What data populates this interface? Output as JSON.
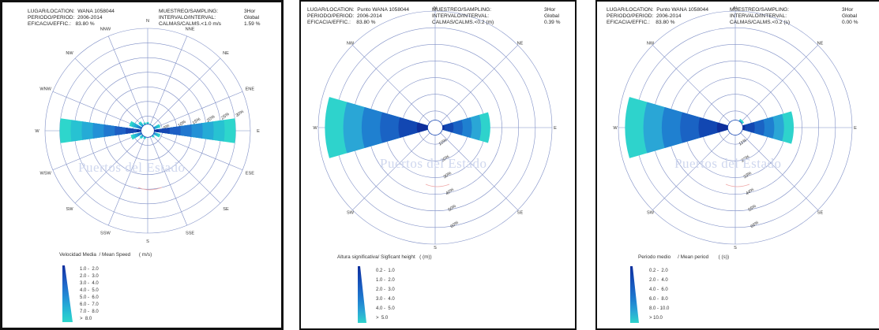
{
  "panels": [
    {
      "header": {
        "l1": "LUGAR/LOCATION:  WANA 1058044",
        "l2": "PERIODO/PERIOD:  2006-2014",
        "l3": "EFICACIA/EFFIC.:   83.80 %",
        "r1": "MUESTREO/SAMPLING:",
        "r2": "INTERVALO/INTERVAL:",
        "r3": "CALMAS/CALMS.<1.0 m/s",
        "v1": "3Hor",
        "v2": "Global",
        "v3": "1.59 %"
      },
      "watermark": "Puertos del Estado",
      "legend_title": "Velocidad Media  / Mean Speed      ( m/s)",
      "legend_items": [
        "1.0 -  2.0",
        "2.0 -  3.0",
        "3.0 -  4.0",
        "4.0 -  5.0",
        "5.0 -  6.0",
        "6.0 -  7.0",
        "7.0 -  8.0",
        ">  8.0"
      ]
    },
    {
      "header": {
        "l1": "LUGAR/LOCATION:  Punto WANA 1058044",
        "l2": "PERIODO/PERIOD:  2006-2014",
        "l3": "EFICACIA/EFFIC.:    83.80 %",
        "r1": "MUESTREO/SAMPLING:",
        "r2": "INTERVALO/INTERVAL:",
        "r3": "CALMAS/CALMS.<0.2 (m)",
        "v1": "3Hor",
        "v2": "Global",
        "v3": "0.39 %"
      },
      "watermark": "Puertos del Estado",
      "legend_title": "Altura significativa/ Sigficant height   ( (m))",
      "legend_items": [
        "0.2 -  1.0",
        "1.0 -  2.0",
        "2.0 -  3.0",
        "3.0 -  4.0",
        "4.0 -  5.0",
        ">  5.0"
      ]
    },
    {
      "header": {
        "l1": "LUGAR/LOCATION:  Punto WANA 1058044",
        "l2": "PERIODO/PERIOD:  2006-2014",
        "l3": "EFICACIA/EFFIC.:    83.80 %",
        "r1": "MUESTREO/SAMPLING:",
        "r2": "INTERVALO/INTERVAL:",
        "r3": "CALMAS/CALMS.<0.2 (s)",
        "v1": "3Hor",
        "v2": "Global",
        "v3": "0.00 %"
      },
      "watermark": "Puertos del Estado",
      "legend_title": "Periodo medio     / Mean period       ( (s))",
      "legend_items": [
        "0.2 -  2.0",
        "2.0 -  4.0",
        "4.0 -  6.0",
        "6.0 -  8.0",
        "8.0 - 10.0",
        "> 10.0"
      ]
    }
  ],
  "chart_data": [
    {
      "type": "windrose",
      "directions": [
        "N",
        "NNE",
        "NE",
        "ENE",
        "E",
        "ESE",
        "SE",
        "SSE",
        "S",
        "SSW",
        "SW",
        "WSW",
        "W",
        "WNW",
        "NW",
        "NNW"
      ],
      "ring_labels": [
        "5%",
        "10%",
        "15%",
        "20%",
        "25%",
        "30%"
      ],
      "rmax": 35,
      "values": [
        3.0,
        2.5,
        2.5,
        4.5,
        30.0,
        4.5,
        3.0,
        2.0,
        2.0,
        3.0,
        3.5,
        6.0,
        30.0,
        6.5,
        4.0,
        3.0
      ],
      "colors": [
        "#0f2f9e",
        "#1747b2",
        "#1e5fc4",
        "#2178cf",
        "#2391d6",
        "#25abd6",
        "#27c2d2",
        "#2ed6cc"
      ]
    },
    {
      "type": "windrose",
      "directions": [
        "N",
        "NE",
        "E",
        "SE",
        "S",
        "SW",
        "W",
        "NW"
      ],
      "ring_labels": [
        "10%",
        "20%",
        "30%",
        "40%",
        "50%",
        "60%"
      ],
      "rmax": 70,
      "values": [
        0.5,
        0.5,
        33,
        0.2,
        0.2,
        0.2,
        66,
        0.5
      ],
      "colors": [
        "#0e2f9c",
        "#1247b2",
        "#1a63c4",
        "#1f80d0",
        "#2aa6d6",
        "#2ed3cc"
      ]
    },
    {
      "type": "windrose",
      "directions": [
        "N",
        "NE",
        "E",
        "SE",
        "S",
        "SW",
        "W",
        "NW"
      ],
      "ring_labels": [
        "11%",
        "22%",
        "33%",
        "44%",
        "55%",
        "66%"
      ],
      "rmax": 70,
      "values": [
        4.0,
        6.0,
        35,
        0.3,
        0.3,
        0.3,
        66,
        4.0
      ],
      "colors": [
        "#0e2f9c",
        "#1247b2",
        "#1a63c4",
        "#1f80d0",
        "#2aa6d6",
        "#2ed3cc"
      ]
    }
  ]
}
